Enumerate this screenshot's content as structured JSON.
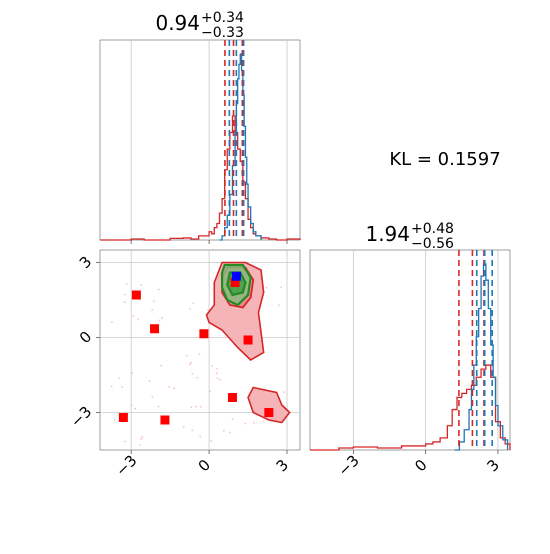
{
  "chart_data": [
    {
      "type": "histogram",
      "panel": "top-left marginal",
      "title_value": "0.94",
      "title_plus": "+0.34",
      "title_minus": "−0.33",
      "xlim": [
        -4.2,
        3.5
      ],
      "xticks": [
        -3,
        0,
        3
      ],
      "grid": true,
      "series": [
        {
          "color": "#d62728",
          "x": [
            -4.2,
            -3.5,
            -3.0,
            -2.5,
            -2.0,
            -1.5,
            -1.0,
            -0.7,
            -0.4,
            -0.2,
            0.0,
            0.1,
            0.2,
            0.3,
            0.4,
            0.5,
            0.6,
            0.7,
            0.8,
            0.9,
            1.0,
            1.1,
            1.2,
            1.3,
            1.4,
            1.5,
            1.6,
            1.7,
            1.8,
            2.0,
            2.3,
            2.6,
            3.0,
            3.5
          ],
          "density": [
            0,
            0,
            0.005,
            0,
            0,
            0.008,
            0.01,
            0.005,
            0.02,
            0.02,
            0.04,
            0.03,
            0.06,
            0.08,
            0.13,
            0.2,
            0.34,
            0.44,
            0.52,
            0.6,
            0.52,
            0.44,
            0.38,
            0.28,
            0.2,
            0.1,
            0.06,
            0.03,
            0.02,
            0.01,
            0.005,
            0,
            0.005,
            0
          ]
        },
        {
          "color": "#1f77b4",
          "x": [
            0.4,
            0.5,
            0.6,
            0.7,
            0.8,
            0.9,
            1.0,
            1.05,
            1.1,
            1.15,
            1.2,
            1.25,
            1.3,
            1.35,
            1.4,
            1.45,
            1.5,
            1.6,
            1.7,
            1.8,
            2.0
          ],
          "density": [
            0,
            0.02,
            0.06,
            0.12,
            0.22,
            0.36,
            0.52,
            0.66,
            0.78,
            0.85,
            0.9,
            0.82,
            0.7,
            0.55,
            0.4,
            0.27,
            0.16,
            0.08,
            0.04,
            0.02,
            0
          ]
        }
      ],
      "quantiles_red": [
        0.61,
        0.94,
        1.28
      ],
      "quantiles_blue": [
        0.78,
        1.05,
        1.33
      ]
    },
    {
      "type": "histogram",
      "panel": "bottom-right marginal",
      "title_value": "1.94",
      "title_plus": "+0.48",
      "title_minus": "−0.56",
      "xlim": [
        -4.8,
        3.5
      ],
      "xticks": [
        -3,
        0,
        3
      ],
      "grid": true,
      "series": [
        {
          "color": "#d62728",
          "x": [
            -4.8,
            -3.6,
            -3.0,
            -2.0,
            -1.0,
            -0.3,
            0.0,
            0.3,
            0.6,
            0.9,
            1.1,
            1.3,
            1.5,
            1.7,
            1.9,
            2.1,
            2.3,
            2.5,
            2.7,
            2.9,
            3.1,
            3.3,
            3.5
          ],
          "density": [
            0,
            0.01,
            0.015,
            0.01,
            0.02,
            0.02,
            0.03,
            0.04,
            0.06,
            0.12,
            0.2,
            0.26,
            0.28,
            0.3,
            0.32,
            0.36,
            0.4,
            0.42,
            0.36,
            0.14,
            0.06,
            0.03,
            0
          ]
        },
        {
          "color": "#1f77b4",
          "x": [
            1.2,
            1.4,
            1.6,
            1.8,
            1.9,
            2.0,
            2.1,
            2.2,
            2.3,
            2.4,
            2.5,
            2.6,
            2.7,
            2.8,
            2.9,
            3.0,
            3.2,
            3.4
          ],
          "density": [
            0,
            0.04,
            0.1,
            0.2,
            0.3,
            0.42,
            0.56,
            0.7,
            0.86,
            0.92,
            0.84,
            0.7,
            0.52,
            0.36,
            0.22,
            0.12,
            0.05,
            0
          ]
        }
      ],
      "quantiles_red": [
        1.38,
        1.94,
        2.42
      ],
      "quantiles_blue": [
        2.12,
        2.45,
        2.76
      ]
    },
    {
      "type": "scatter",
      "panel": "bottom-left joint",
      "xlim": [
        -4.2,
        3.5
      ],
      "ylim": [
        -4.5,
        3.5
      ],
      "xticks": [
        -3,
        0,
        3
      ],
      "yticks": [
        -3,
        0,
        3
      ],
      "grid": true,
      "red_squares": [
        {
          "x": -2.8,
          "y": 1.7
        },
        {
          "x": -2.1,
          "y": 0.35
        },
        {
          "x": -0.2,
          "y": 0.15
        },
        {
          "x": 1.5,
          "y": -0.1
        },
        {
          "x": 0.9,
          "y": -2.4
        },
        {
          "x": 2.3,
          "y": -3.0
        },
        {
          "x": -3.3,
          "y": -3.2
        },
        {
          "x": -1.7,
          "y": -3.3
        },
        {
          "x": 1.0,
          "y": 2.2
        }
      ],
      "blue_square": {
        "x": 1.05,
        "y": 2.45
      },
      "red_contours": [
        [
          [
            0.5,
            3.0
          ],
          [
            1.4,
            3.0
          ],
          [
            2.0,
            2.7
          ],
          [
            2.1,
            1.8
          ],
          [
            1.9,
            1.0
          ],
          [
            2.0,
            0.2
          ],
          [
            2.1,
            -0.6
          ],
          [
            1.6,
            -0.9
          ],
          [
            1.1,
            -0.4
          ],
          [
            0.5,
            0.3
          ],
          [
            0.0,
            0.6
          ],
          [
            -0.1,
            0.9
          ],
          [
            0.2,
            1.3
          ],
          [
            0.2,
            2.2
          ],
          [
            0.5,
            3.0
          ]
        ],
        [
          [
            1.7,
            -2.0
          ],
          [
            2.6,
            -2.2
          ],
          [
            2.8,
            -2.7
          ],
          [
            3.1,
            -3.0
          ],
          [
            2.8,
            -3.4
          ],
          [
            2.3,
            -3.3
          ],
          [
            1.7,
            -3.0
          ],
          [
            1.5,
            -2.4
          ],
          [
            1.7,
            -2.0
          ]
        ]
      ],
      "red_inner_contour": [
        [
          0.7,
          2.8
        ],
        [
          1.4,
          2.8
        ],
        [
          1.7,
          2.3
        ],
        [
          1.6,
          1.6
        ],
        [
          1.3,
          1.2
        ],
        [
          0.8,
          1.3
        ],
        [
          0.5,
          1.8
        ],
        [
          0.5,
          2.4
        ],
        [
          0.7,
          2.8
        ]
      ],
      "green_contours": [
        [
          [
            0.6,
            2.9
          ],
          [
            1.3,
            2.9
          ],
          [
            1.6,
            2.4
          ],
          [
            1.5,
            1.7
          ],
          [
            1.1,
            1.3
          ],
          [
            0.7,
            1.5
          ],
          [
            0.5,
            2.0
          ],
          [
            0.5,
            2.6
          ],
          [
            0.6,
            2.9
          ]
        ],
        [
          [
            0.8,
            2.6
          ],
          [
            1.2,
            2.6
          ],
          [
            1.4,
            2.2
          ],
          [
            1.3,
            1.8
          ],
          [
            0.9,
            1.7
          ],
          [
            0.7,
            2.1
          ],
          [
            0.8,
            2.6
          ]
        ]
      ]
    }
  ],
  "annotation": {
    "text": "KL = 0.1597"
  }
}
